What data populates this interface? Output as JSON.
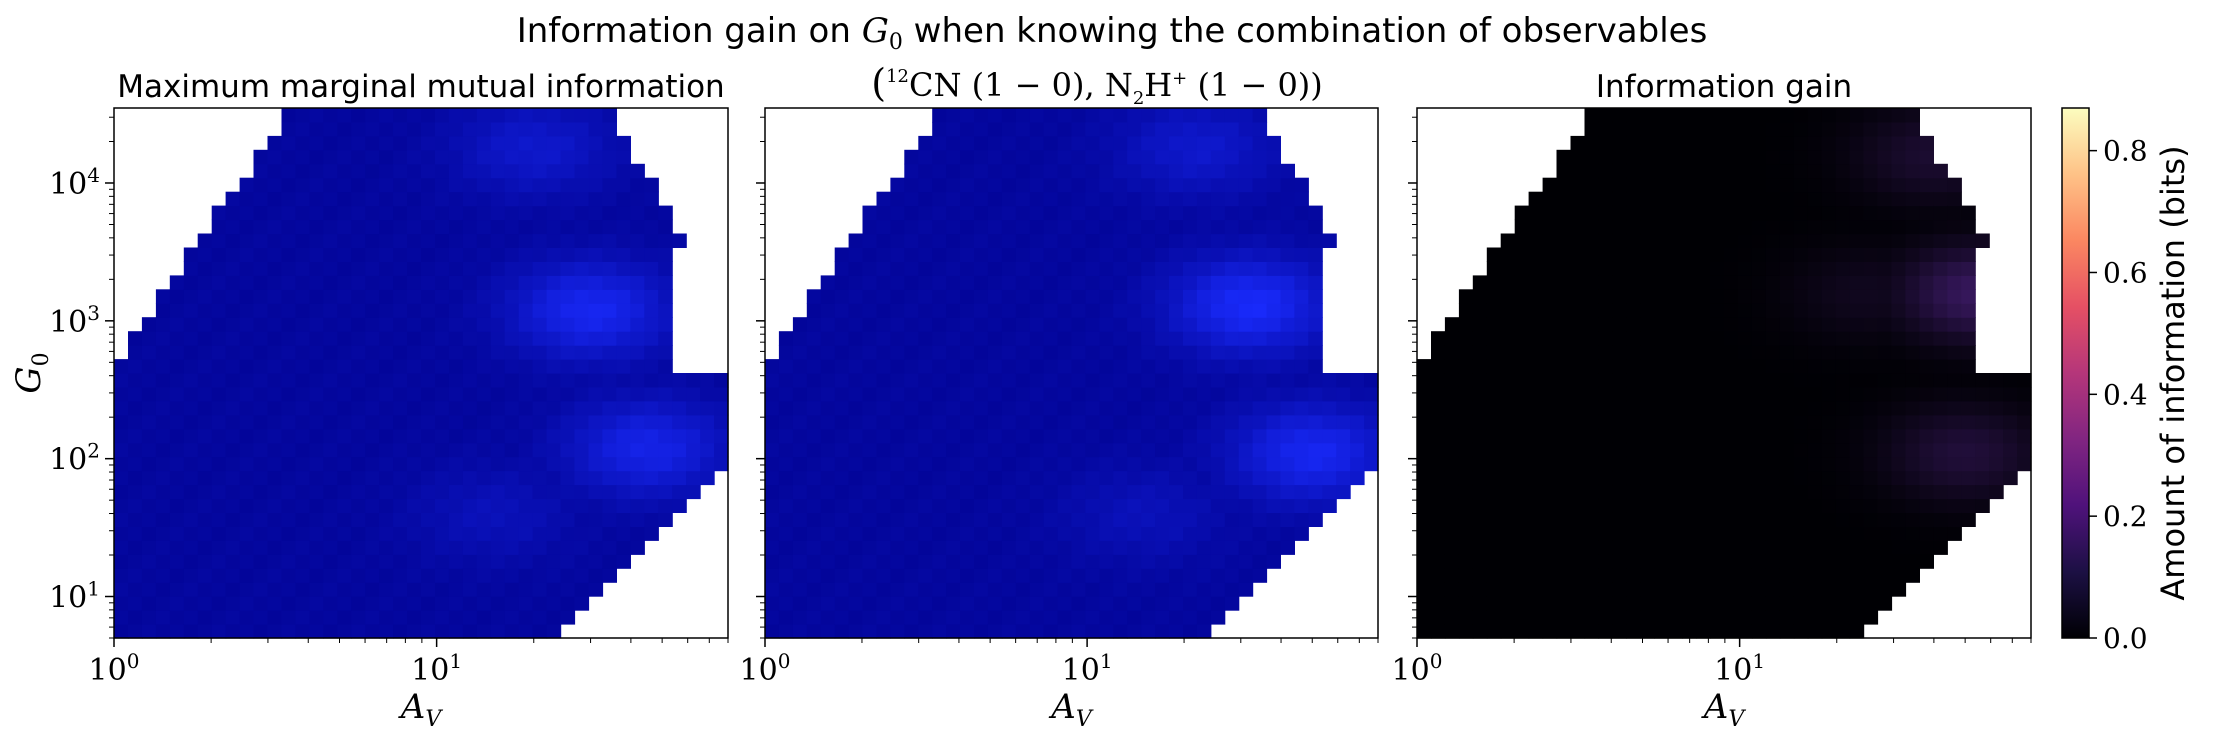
{
  "figure": {
    "suptitle_parts": [
      "Information gain on ",
      "G",
      "0",
      " when knowing the combination of observables"
    ],
    "subtitle_parts": [
      "(",
      "12",
      "CN (1 − 0), N",
      "2",
      "H",
      "+",
      " (1 − 0))"
    ]
  },
  "colors": {
    "colorbar_stops": [
      "#000004",
      "#1c1044",
      "#4f127b",
      "#812581",
      "#b5367a",
      "#e55064",
      "#fb8761",
      "#fec287",
      "#fcfdbf"
    ],
    "mi_low": "#00008c",
    "mi_high": "#1a2cff",
    "gain_high": "#3c1a66"
  },
  "chart_data": [
    {
      "type": "heatmap",
      "title": "Maximum marginal mutual information",
      "xlabel": [
        "A",
        "V"
      ],
      "ylabel": [
        "G",
        "0"
      ],
      "xscale": "log",
      "yscale": "log",
      "xlim": [
        1,
        80
      ],
      "ylim": [
        5,
        35000
      ],
      "xticks": [
        {
          "value": 1,
          "base": "10",
          "exp": "0"
        },
        {
          "value": 10,
          "base": "10",
          "exp": "1"
        }
      ],
      "yticks": [
        {
          "value": 10,
          "base": "10",
          "exp": "1"
        },
        {
          "value": 100,
          "base": "10",
          "exp": "2"
        },
        {
          "value": 1000,
          "base": "10",
          "exp": "3"
        },
        {
          "value": 10000,
          "base": "10",
          "exp": "4"
        }
      ],
      "value_range": [
        0,
        0.06
      ],
      "hot_spots": [
        [
          30,
          1200,
          0.9
        ],
        [
          45,
          120,
          0.8
        ],
        [
          20,
          18000,
          0.5
        ],
        [
          15,
          40,
          0.3
        ]
      ]
    },
    {
      "type": "heatmap",
      "title": "",
      "xlabel": [
        "A",
        "V"
      ],
      "ylabel": [
        "",
        ""
      ],
      "xscale": "log",
      "yscale": "log",
      "xlim": [
        1,
        80
      ],
      "ylim": [
        5,
        35000
      ],
      "xticks": [
        {
          "value": 1,
          "base": "10",
          "exp": "0"
        },
        {
          "value": 10,
          "base": "10",
          "exp": "1"
        }
      ],
      "yticks": [],
      "value_range": [
        0,
        0.07
      ],
      "hot_spots": [
        [
          32,
          1300,
          1.0
        ],
        [
          50,
          110,
          0.9
        ],
        [
          22,
          18000,
          0.5
        ],
        [
          15,
          40,
          0.3
        ]
      ]
    },
    {
      "type": "heatmap",
      "title": "Information gain",
      "xlabel": [
        "A",
        "V"
      ],
      "ylabel": [
        "",
        ""
      ],
      "xscale": "log",
      "yscale": "log",
      "xlim": [
        1,
        80
      ],
      "ylim": [
        5,
        35000
      ],
      "xticks": [
        {
          "value": 1,
          "base": "10",
          "exp": "0"
        },
        {
          "value": 10,
          "base": "10",
          "exp": "1"
        }
      ],
      "yticks": [],
      "value_range": [
        0,
        0.1
      ],
      "hot_spots": [
        [
          55,
          1600,
          1.0
        ],
        [
          50,
          110,
          0.6
        ],
        [
          40,
          16000,
          0.5
        ],
        [
          25,
          1600,
          0.3
        ]
      ]
    }
  ],
  "colorbar": {
    "label": "Amount of information (bits)",
    "range": [
      0,
      0.87
    ],
    "ticks": [
      "0.0",
      "0.2",
      "0.4",
      "0.6",
      "0.8"
    ]
  }
}
